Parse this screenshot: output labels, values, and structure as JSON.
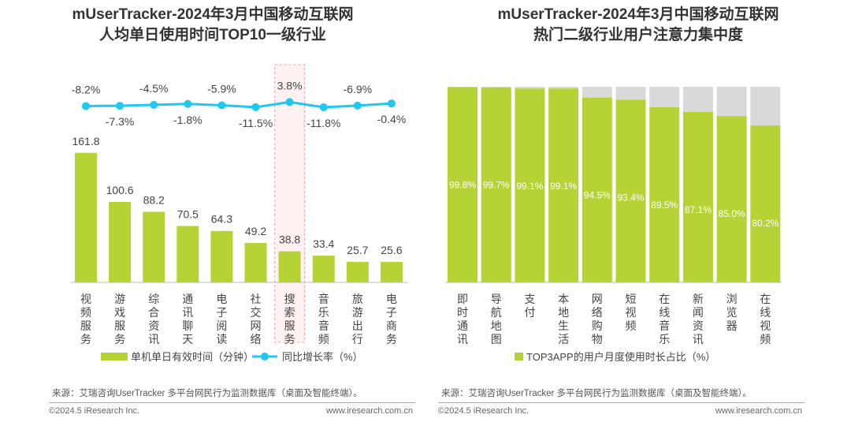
{
  "colors": {
    "bar": "#b5d334",
    "line": "#1ec8f0",
    "gray": "#d9d9d9",
    "highlight": "#f4a0a0"
  },
  "left": {
    "title_line1": "mUserTracker-2024年3月中国移动互联网",
    "title_line2": "人均单日使用时间TOP10一级行业",
    "legend_bar": "单机单日有效时间（分钟）",
    "legend_line": "同比增长率（%）",
    "source": "来源：艾瑞咨询UserTracker 多平台网民行为监测数据库（桌面及智能终端）。",
    "copyright": "©2024.5 iResearch Inc.",
    "website": "www.iresearch.com.cn"
  },
  "right": {
    "title_line1": "mUserTracker-2024年3月中国移动互联网",
    "title_line2": "热门二级行业用户注意力集中度",
    "legend_bar": "TOP3APP的用户月度使用时长占比（%）",
    "source": "来源：艾瑞咨询UserTracker 多平台网民行为监测数据库（桌面及智能终端）。",
    "copyright": "©2024.5 iResearch Inc.",
    "website": "www.iresearch.com.cn"
  },
  "chart_data": [
    {
      "type": "bar+line",
      "title": "mUserTracker-2024年3月中国移动互联网 人均单日使用时间TOP10一级行业",
      "categories": [
        "视频服务",
        "游戏服务",
        "综合资讯",
        "通讯聊天",
        "电子阅读",
        "社交网络",
        "搜索服务",
        "音乐音频",
        "旅游出行",
        "电子商务"
      ],
      "series": [
        {
          "name": "单机单日有效时间（分钟）",
          "type": "bar",
          "values": [
            161.8,
            100.6,
            88.2,
            70.5,
            64.3,
            49.2,
            38.8,
            33.4,
            25.7,
            25.6
          ],
          "labels": [
            "161.8",
            "100.6",
            "88.2",
            "70.5",
            "64.3",
            "49.2",
            "38.8",
            "33.4",
            "25.7",
            "25.6"
          ]
        },
        {
          "name": "同比增长率（%）",
          "type": "line",
          "values": [
            -8.2,
            -7.3,
            -4.5,
            -1.8,
            -5.9,
            -11.5,
            3.8,
            -11.8,
            -6.9,
            -0.4
          ],
          "labels": [
            "-8.2%",
            "-7.3%",
            "-4.5%",
            "-1.8%",
            "-5.9%",
            "-11.5%",
            "3.8%",
            "-11.8%",
            "-6.9%",
            "-0.4%"
          ]
        }
      ],
      "highlight_category": "搜索服务",
      "legend": "bottom"
    },
    {
      "type": "bar",
      "title": "mUserTracker-2024年3月中国移动互联网 热门二级行业用户注意力集中度",
      "categories": [
        "即时通讯",
        "导航地图",
        "支付",
        "本地生活",
        "网络购物",
        "短视频",
        "在线音乐",
        "新闻资讯",
        "浏览器",
        "在线视频"
      ],
      "values": [
        99.8,
        99.7,
        99.1,
        99.1,
        94.5,
        93.4,
        89.5,
        87.1,
        85.0,
        80.2
      ],
      "labels": [
        "99.8%",
        "99.7%",
        "99.1%",
        "99.1%",
        "94.5%",
        "93.4%",
        "89.5%",
        "87.1%",
        "85.0%",
        "80.2%"
      ],
      "ylim": [
        0,
        100
      ],
      "legend": "bottom"
    }
  ]
}
